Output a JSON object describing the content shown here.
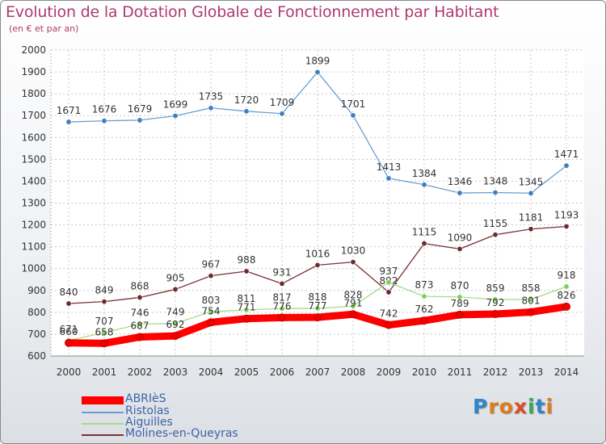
{
  "title": "Evolution de la Dotation Globale de Fonctionnement par Habitant",
  "subtitle": "(en € et par an)",
  "logo": {
    "text": "Proxiti",
    "letters": [
      "P",
      "r",
      "o",
      "x",
      "i",
      "t",
      "i"
    ],
    "letter_colors": [
      "#2f86c8",
      "#e07c1a",
      "#e07c1a",
      "#e24a1f",
      "#3aa65a",
      "#2f86c8",
      "#e07c1a"
    ]
  },
  "chart_data": {
    "type": "line",
    "title": "Evolution de la Dotation Globale de Fonctionnement par Habitant",
    "subtitle": "(en € et par an)",
    "xlabel": "",
    "ylabel": "",
    "categories": [
      "2000",
      "2001",
      "2002",
      "2003",
      "2004",
      "2005",
      "2006",
      "2007",
      "2008",
      "2009",
      "2010",
      "2011",
      "2012",
      "2013",
      "2014"
    ],
    "ylim": [
      600,
      2000
    ],
    "yticks": [
      "600",
      "700",
      "800",
      "900",
      "1000",
      "1100",
      "1200",
      "1300",
      "1400",
      "1500",
      "1600",
      "1700",
      "1800",
      "1900",
      "2000"
    ],
    "grid": true,
    "legend_position": "bottom-left",
    "series": [
      {
        "name": "Ristolas",
        "color": "#6a9fd2",
        "marker_color": "#3d7fc0",
        "emphasis": "normal",
        "values": [
          1671,
          1676,
          1679,
          1699,
          1735,
          1720,
          1709,
          1899,
          1701,
          1413,
          1384,
          1346,
          1348,
          1345,
          1471
        ],
        "labels": [
          "1671",
          "1676",
          "1679",
          "1699",
          "1735",
          "1720",
          "1709",
          "1899",
          "1701",
          "1413",
          "1384",
          "1346",
          "1348",
          "1345",
          "1471"
        ]
      },
      {
        "name": "Molines-en-Queyras",
        "color": "#7a2f35",
        "marker_color": "#6b2a30",
        "emphasis": "normal",
        "values": [
          840,
          849,
          868,
          905,
          967,
          988,
          931,
          1016,
          1030,
          892,
          1115,
          1090,
          1155,
          1181,
          1193
        ],
        "labels": [
          "840",
          "849",
          "868",
          "905",
          "967",
          "988",
          "931",
          "1016",
          "1030",
          "892",
          "1115",
          "1090",
          "1155",
          "1181",
          "1193"
        ]
      },
      {
        "name": "Aiguilles",
        "color": "#a5dc86",
        "marker_color": "#7fcf57",
        "emphasis": "normal",
        "values": [
          671,
          707,
          746,
          749,
          803,
          811,
          817,
          818,
          828,
          937,
          873,
          870,
          859,
          858,
          918
        ],
        "labels": [
          "671",
          "707",
          "746",
          "749",
          "803",
          "811",
          "817",
          "818",
          "828",
          "937",
          "873",
          "870",
          "859",
          "858",
          "918"
        ]
      },
      {
        "name": "ABRIèS",
        "color": "#ff0000",
        "marker_color": "#ee0000",
        "emphasis": "bold",
        "values": [
          660,
          658,
          687,
          692,
          754,
          771,
          776,
          777,
          791,
          742,
          762,
          789,
          792,
          801,
          826
        ],
        "labels": [
          "660",
          "658",
          "687",
          "692",
          "754",
          "771",
          "776",
          "777",
          "791",
          "742",
          "762",
          "789",
          "792",
          "801",
          "826"
        ]
      }
    ]
  },
  "legend": [
    {
      "name": "ABRIèS",
      "color": "#ff0000",
      "style": "thick"
    },
    {
      "name": "Ristolas",
      "color": "#6a9fd2",
      "style": "thin"
    },
    {
      "name": "Aiguilles",
      "color": "#a5dc86",
      "style": "thin"
    },
    {
      "name": "Molines-en-Queyras",
      "color": "#7a2f35",
      "style": "thin"
    }
  ]
}
